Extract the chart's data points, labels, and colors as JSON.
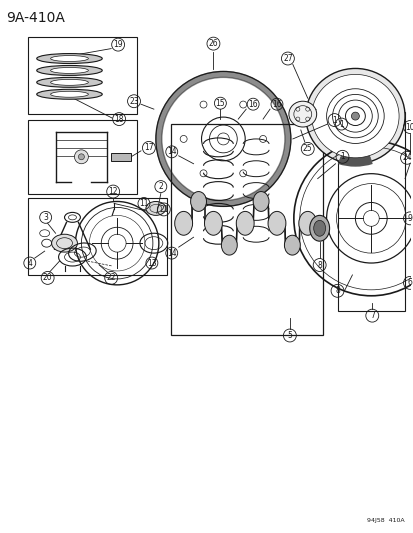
{
  "title": "9A-410A",
  "footer": "94J58  410A",
  "bg_color": "#ffffff",
  "lc": "#1a1a1a",
  "fig_width": 4.14,
  "fig_height": 5.33,
  "dpi": 100
}
